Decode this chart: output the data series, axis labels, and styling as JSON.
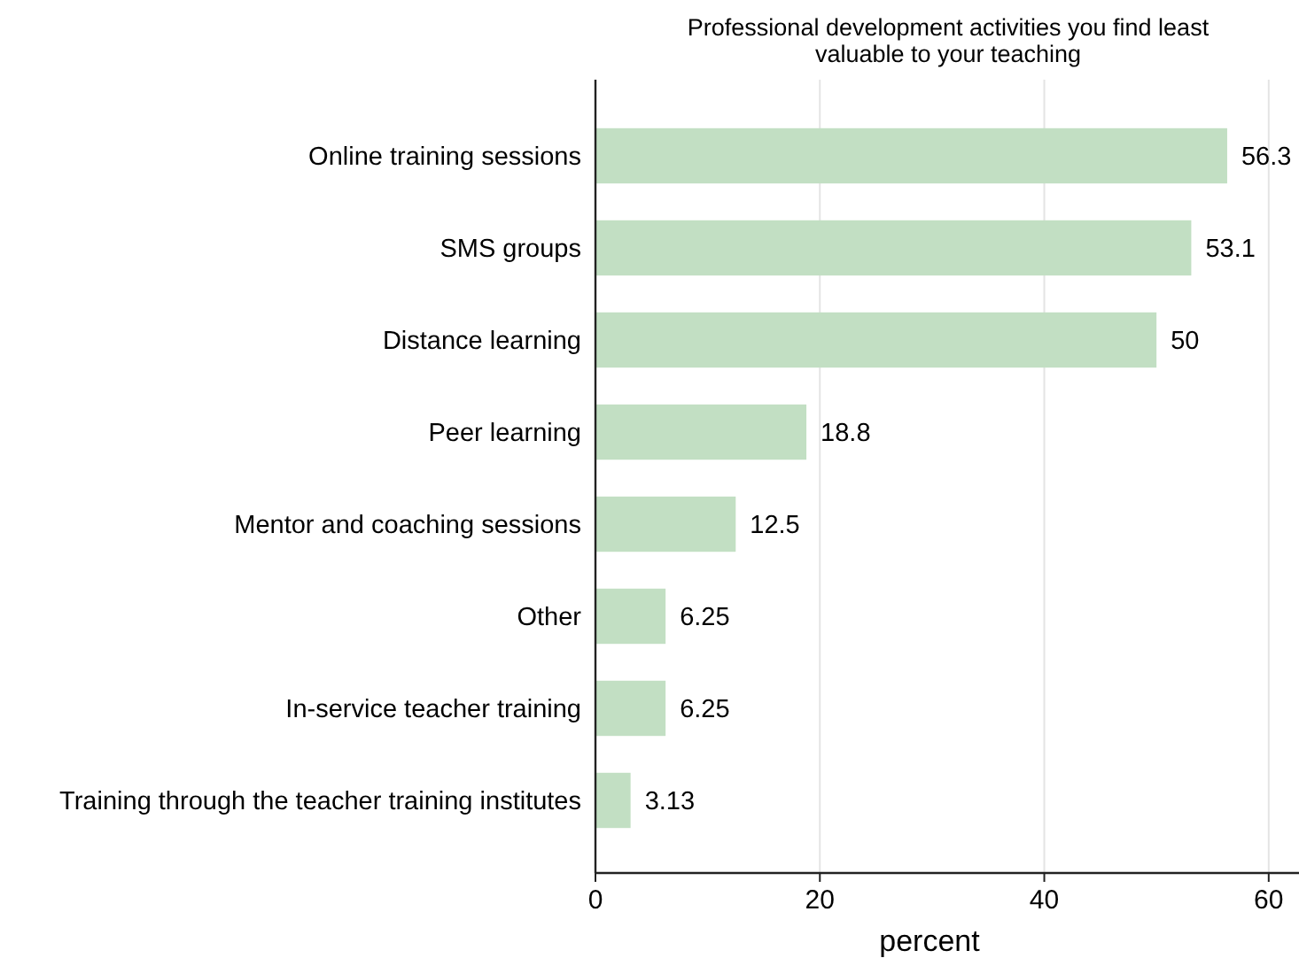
{
  "chart_data": {
    "type": "bar",
    "orientation": "horizontal",
    "title": "Professional development activities you find least valuable to your teaching",
    "xlabel": "percent",
    "categories": [
      "Online training sessions",
      "SMS groups",
      "Distance learning",
      "Peer learning",
      "Mentor and coaching sessions",
      "Other",
      "In-service teacher training",
      "Training through the teacher training institutes"
    ],
    "values": [
      56.3,
      53.1,
      50,
      18.8,
      12.5,
      6.25,
      6.25,
      3.13
    ],
    "color": "#c2dfc3",
    "xlim": [
      0,
      62.7
    ],
    "xticks": [
      0,
      20,
      40,
      60
    ],
    "grid": "x",
    "data_labels": true
  }
}
